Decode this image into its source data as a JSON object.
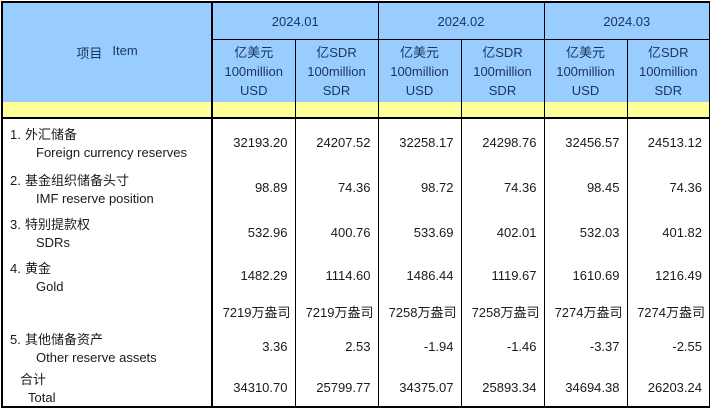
{
  "table": {
    "item_header": {
      "zh": "项目",
      "en": "Item"
    },
    "months": [
      "2024.01",
      "2024.02",
      "2024.03"
    ],
    "unit_usd": {
      "line1": "亿美元",
      "line2": "100million",
      "line3": "USD"
    },
    "unit_sdr": {
      "line1": "亿SDR",
      "line2": "100million",
      "line3": "SDR"
    },
    "rows": [
      {
        "num": "1.",
        "zh": "外汇储备",
        "en": "Foreign currency reserves",
        "v": [
          "32193.20",
          "24207.52",
          "32258.17",
          "24298.76",
          "32456.57",
          "24513.12"
        ]
      },
      {
        "num": "2.",
        "zh": "基金组织储备头寸",
        "en": "IMF reserve position",
        "v": [
          "98.89",
          "74.36",
          "98.72",
          "74.36",
          "98.45",
          "74.36"
        ]
      },
      {
        "num": "3.",
        "zh": "特别提款权",
        "en": "SDRs",
        "v": [
          "532.96",
          "400.76",
          "533.69",
          "402.01",
          "532.03",
          "401.82"
        ]
      },
      {
        "num": "4.",
        "zh": "黄金",
        "en": "Gold",
        "v": [
          "1482.29",
          "1114.60",
          "1486.44",
          "1119.67",
          "1610.69",
          "1216.49"
        ]
      },
      {
        "num": "",
        "zh": "",
        "en": "",
        "v": [
          "7219万盎司",
          "7219万盎司",
          "7258万盎司",
          "7258万盎司",
          "7274万盎司",
          "7274万盎司"
        ]
      },
      {
        "num": "5.",
        "zh": "其他储备资产",
        "en": "Other reserve assets",
        "v": [
          "3.36",
          "2.53",
          "-1.94",
          "-1.46",
          "-3.37",
          "-2.55"
        ]
      },
      {
        "num": "",
        "zh": "合计",
        "en": "Total",
        "v": [
          "34310.70",
          "25799.77",
          "34375.07",
          "25893.34",
          "34694.38",
          "26203.24"
        ]
      }
    ]
  },
  "colors": {
    "header_blue": "#99CCFF",
    "band_yellow": "#FFFF99",
    "header_text": "#17365D",
    "body_text": "#1A1A1A",
    "border": "#000000"
  }
}
